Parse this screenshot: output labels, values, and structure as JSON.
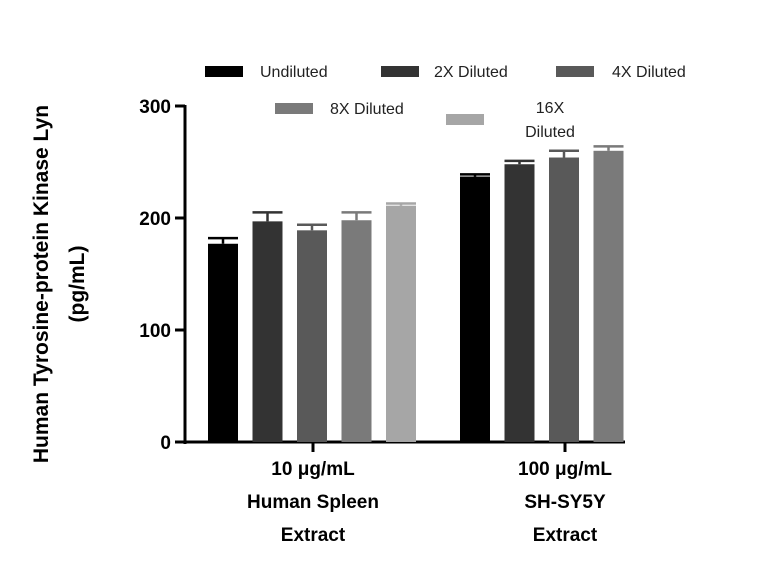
{
  "chart_data": {
    "type": "bar",
    "ylabel_lines": [
      "Human Tyrosine-protein Kinase Lyn",
      "(pg/mL)"
    ],
    "ylim": [
      0,
      300
    ],
    "yticks": [
      0,
      100,
      200,
      300
    ],
    "grid": false,
    "legend_position": "top",
    "groups": [
      {
        "label_lines": [
          "10 μg/mL",
          "Human Spleen",
          "Extract"
        ]
      },
      {
        "label_lines": [
          "100 μg/mL",
          "SH-SY5Y",
          "Extract"
        ]
      }
    ],
    "series": [
      {
        "name": "Undiluted",
        "color": "#000000",
        "values": [
          177,
          237
        ],
        "errors": [
          5,
          2
        ]
      },
      {
        "name": "2X Diluted",
        "color": "#333333",
        "values": [
          197,
          248
        ],
        "errors": [
          8,
          3
        ]
      },
      {
        "name": "4X Diluted",
        "color": "#595959",
        "values": [
          189,
          254
        ],
        "errors": [
          5,
          6
        ]
      },
      {
        "name": "8X Diluted",
        "color": "#7a7a7a",
        "values": [
          198,
          260
        ],
        "errors": [
          7,
          4
        ]
      },
      {
        "name": "16X Diluted",
        "color": "#a6a6a6",
        "values": [
          211,
          null
        ],
        "errors": [
          2,
          null
        ]
      }
    ],
    "legend": [
      {
        "name": "Undiluted",
        "color": "#000000"
      },
      {
        "name": "2X Diluted",
        "color": "#333333"
      },
      {
        "name": "4X Diluted",
        "color": "#595959"
      },
      {
        "name": "8X Diluted",
        "color": "#7a7a7a"
      },
      {
        "name_lines": [
          "16X",
          "Diluted"
        ],
        "color": "#a6a6a6"
      }
    ]
  }
}
